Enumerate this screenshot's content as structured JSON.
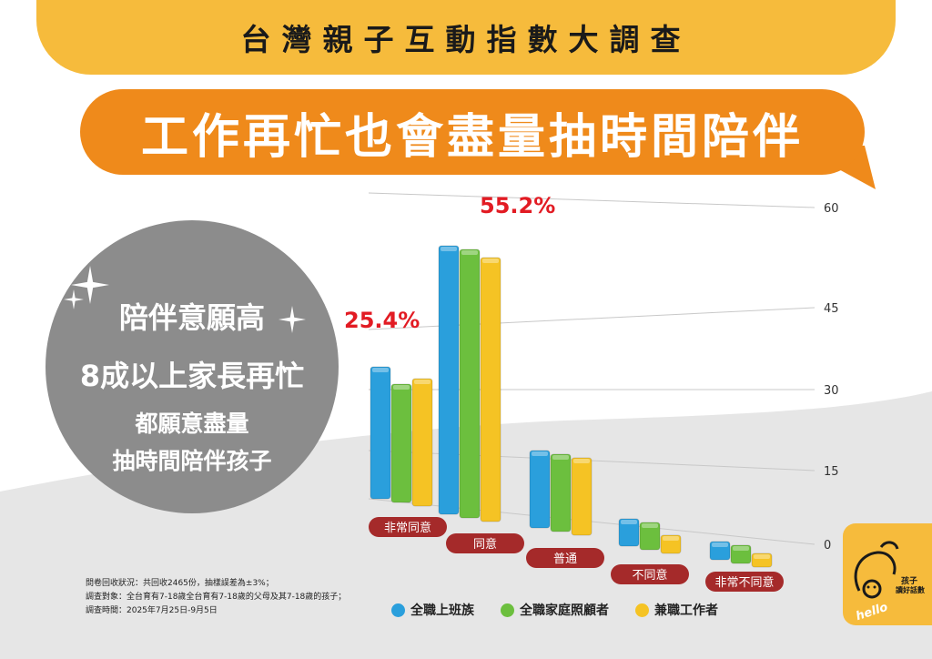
{
  "banner": {
    "title": "台灣親子互動指數大調查"
  },
  "headline": {
    "text": "工作再忙也會盡量抽時間陪伴"
  },
  "callout": {
    "line1": "陪伴意願高",
    "line2": "8成以上家長再忙",
    "line3": "都願意盡量",
    "line4": "抽時間陪伴孩子"
  },
  "notes": {
    "line1": "問卷回收狀況：共回收2465份，抽樣誤差為±3%；",
    "line2": "調查對象：全台育有7-18歲全台育有7-18歲的父母及其7-18歲的孩子；",
    "line3": "調查時間：2025年7月25日-9月5日"
  },
  "logo": {
    "line1": "孩子",
    "line2": "讀好話數",
    "brand": "hello"
  },
  "colors": {
    "blue": "#2a9fdc",
    "green": "#6cbf3e",
    "yellow": "#f5c324",
    "label_red": "#a52a2a",
    "highlight": "#e21b23"
  },
  "chart_data": {
    "type": "bar",
    "categories": [
      "非常同意",
      "同意",
      "普通",
      "不同意",
      "非常不同意"
    ],
    "series": [
      {
        "name": "全職上班族",
        "values": [
          29,
          59,
          17,
          6,
          4
        ]
      },
      {
        "name": "全職家庭照顧者",
        "values": [
          26,
          59,
          17,
          6,
          4
        ]
      },
      {
        "name": "兼職工作者",
        "values": [
          28,
          58,
          17,
          4,
          3
        ]
      }
    ],
    "annotations": [
      "25.4%",
      "55.2%"
    ],
    "yticks": [
      "0",
      "15",
      "30",
      "45",
      "60"
    ],
    "ylim": [
      0,
      60
    ],
    "grid": true,
    "legend": "bottom"
  }
}
